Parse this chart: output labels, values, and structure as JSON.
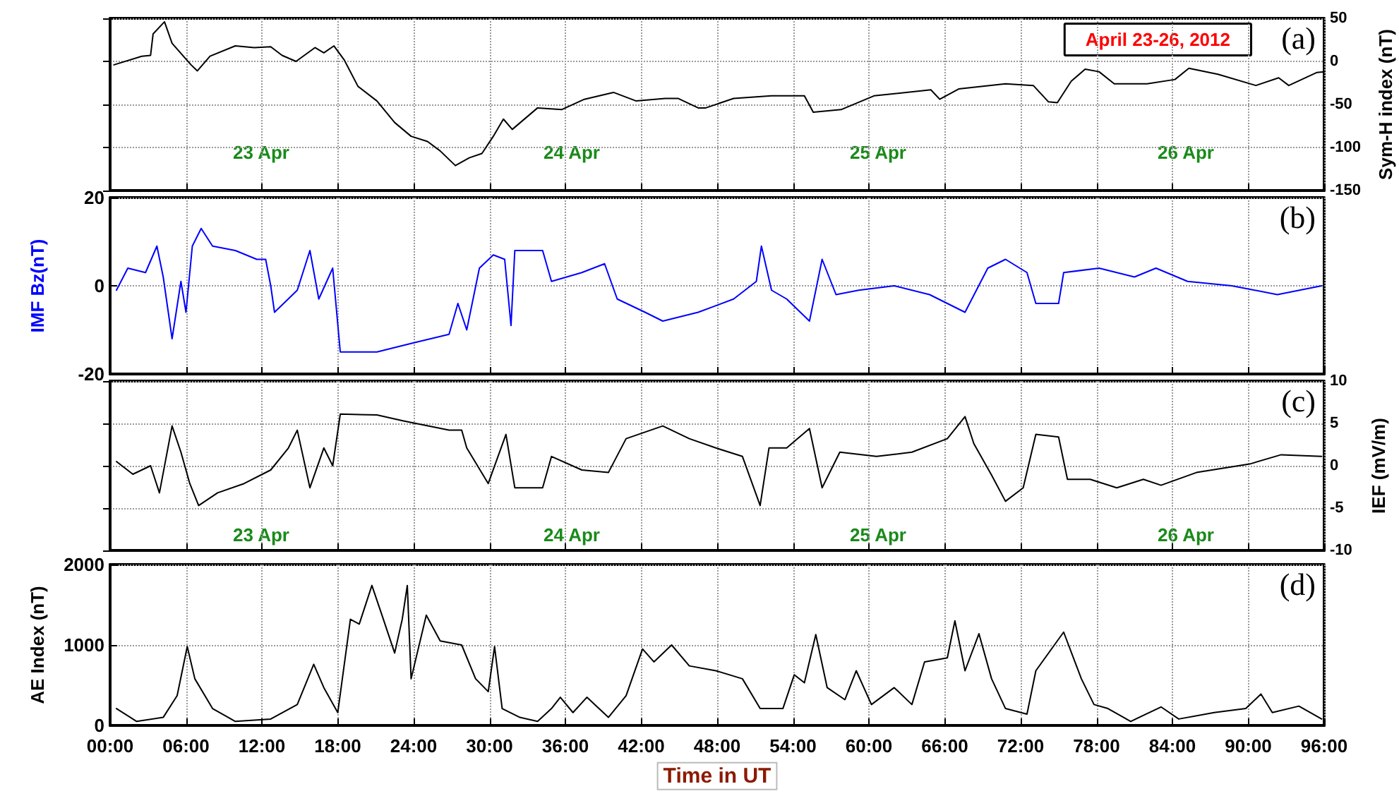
{
  "chart_data": [
    {
      "type": "line",
      "ylabel": "Sym-H index (nT)",
      "xlim": [
        0,
        96
      ],
      "ylim": [
        -150,
        50
      ],
      "yticks": [
        -150,
        -100,
        -50,
        0,
        50
      ],
      "tick_labels": "y",
      "grid": true,
      "marker": "none",
      "line_style": "solid",
      "xticks": [
        {
          "value": 0,
          "label": null
        },
        {
          "value": 6,
          "label": null
        },
        {
          "value": 12,
          "label": null
        },
        {
          "value": 18,
          "label": null
        },
        {
          "value": 24,
          "label": null
        },
        {
          "value": 30,
          "label": null
        },
        {
          "value": 36,
          "label": null
        },
        {
          "value": 42,
          "label": null
        },
        {
          "value": 48,
          "label": null
        },
        {
          "value": 54,
          "label": null
        },
        {
          "value": 60,
          "label": null
        },
        {
          "value": 66,
          "label": null
        },
        {
          "value": 72,
          "label": null
        },
        {
          "value": 78,
          "label": null
        },
        {
          "value": 84,
          "label": null
        },
        {
          "value": 90,
          "label": null
        },
        {
          "value": 96,
          "label": null
        }
      ],
      "x": [
        0.3,
        2.5,
        3.2,
        3.4,
        4.3,
        4.9,
        6.4,
        6.9,
        7.9,
        9.9,
        11.4,
        12.7,
        13.6,
        14.7,
        16.2,
        16.9,
        17.7,
        18.5,
        19.6,
        21.1,
        22.5,
        23.8,
        25.1,
        26.1,
        27.3,
        28.4,
        29.4,
        30.3,
        31.1,
        31.8,
        33.8,
        35.7,
        37.5,
        39.8,
        41.6,
        43.9,
        44.9,
        46.5,
        47.1,
        49.3,
        52.3,
        54.9,
        55.6,
        57.8,
        60.4,
        64.9,
        65.6,
        67.1,
        70.8,
        73.0,
        74.2,
        74.9,
        76.0,
        77.1,
        78.2,
        79.4,
        82.0,
        84.2,
        85.3,
        87.6,
        90.6,
        92.4,
        93.2,
        95.4,
        96
      ],
      "series": [
        {
          "color": "#000000",
          "values": [
            -4,
            6,
            7,
            32,
            46,
            21,
            -4,
            -11,
            6,
            18,
            16,
            17,
            7,
            0,
            16,
            10,
            18,
            2,
            -29,
            -46,
            -71,
            -87,
            -93,
            -104,
            -121,
            -112,
            -107,
            -87,
            -67,
            -79,
            -54,
            -56,
            -44,
            -36,
            -46,
            -43,
            -43,
            -54,
            -54,
            -43,
            -40,
            -40,
            -59,
            -56,
            -40,
            -33,
            -44,
            -32,
            -26,
            -28,
            -47,
            -48,
            -23,
            -9,
            -12,
            -26,
            -26,
            -21,
            -8,
            -15,
            -28,
            -19,
            -28,
            -13,
            -12
          ]
        }
      ],
      "annotations": [
        "April 23-26, 2012",
        "(a)",
        "23 Apr",
        "24 Apr",
        "25 Apr",
        "26 Apr"
      ]
    },
    {
      "type": "line",
      "ylabel": "IMF Bz(nT)",
      "xlim": [
        0,
        96
      ],
      "ylim": [
        -20,
        20
      ],
      "yticks": [
        -20,
        0,
        20
      ],
      "tick_labels": "y",
      "grid": true,
      "marker": "none",
      "line_style": "solid",
      "xticks": [
        {
          "value": 0,
          "label": null
        },
        {
          "value": 6,
          "label": null
        },
        {
          "value": 12,
          "label": null
        },
        {
          "value": 18,
          "label": null
        },
        {
          "value": 24,
          "label": null
        },
        {
          "value": 30,
          "label": null
        },
        {
          "value": 36,
          "label": null
        },
        {
          "value": 42,
          "label": null
        },
        {
          "value": 48,
          "label": null
        },
        {
          "value": 54,
          "label": null
        },
        {
          "value": 60,
          "label": null
        },
        {
          "value": 66,
          "label": null
        },
        {
          "value": 72,
          "label": null
        },
        {
          "value": 78,
          "label": null
        },
        {
          "value": 84,
          "label": null
        },
        {
          "value": 90,
          "label": null
        },
        {
          "value": 96,
          "label": null
        }
      ],
      "x": [
        0.5,
        1.4,
        2.8,
        3.7,
        4.2,
        4.9,
        5.6,
        6.0,
        6.5,
        7.2,
        8.1,
        9.9,
        11.6,
        12.3,
        12.7,
        13.0,
        14.8,
        15.8,
        16.5,
        17.6,
        18.2,
        21.1,
        23.9,
        26.8,
        27.5,
        28.2,
        29.2,
        30.3,
        31.2,
        31.7,
        32.0,
        34.2,
        34.9,
        37.3,
        39.1,
        40.1,
        42.3,
        43.7,
        46.5,
        49.3,
        51.1,
        51.5,
        52.3,
        53.5,
        55.3,
        56.3,
        57.4,
        59.2,
        62.0,
        64.8,
        67.6,
        69.4,
        70.8,
        72.5,
        73.2,
        75.0,
        75.4,
        78.2,
        81.0,
        82.7,
        85.2,
        88.7,
        92.3,
        95.8
      ],
      "series": [
        {
          "color": "#0000ff",
          "values": [
            -1,
            4,
            3,
            9,
            2,
            -12,
            1,
            -6,
            9,
            13,
            9,
            8,
            6,
            6,
            0,
            -6,
            -1,
            8,
            -3,
            4,
            -15,
            -15,
            -13,
            -11,
            -4,
            -10,
            4,
            7,
            6,
            -9,
            8,
            8,
            1,
            3,
            5,
            -3,
            -6,
            -8,
            -6,
            -3,
            1,
            9,
            -1,
            -3,
            -8,
            6,
            -2,
            -1,
            0,
            -2,
            -6,
            4,
            6,
            3,
            -4,
            -4,
            3,
            4,
            2,
            4,
            1,
            0,
            -2,
            0
          ]
        }
      ],
      "annotations": [
        "(b)"
      ]
    },
    {
      "type": "line",
      "ylabel": "IEF (mV/m)",
      "xlim": [
        0,
        96
      ],
      "ylim": [
        -10,
        10
      ],
      "yticks": [
        -10,
        -5,
        0,
        5,
        10
      ],
      "tick_labels": "y",
      "grid": true,
      "marker": "none",
      "line_style": "solid",
      "xticks": [
        {
          "value": 0,
          "label": null
        },
        {
          "value": 6,
          "label": null
        },
        {
          "value": 12,
          "label": null
        },
        {
          "value": 18,
          "label": null
        },
        {
          "value": 24,
          "label": null
        },
        {
          "value": 30,
          "label": null
        },
        {
          "value": 36,
          "label": null
        },
        {
          "value": 42,
          "label": null
        },
        {
          "value": 48,
          "label": null
        },
        {
          "value": 54,
          "label": null
        },
        {
          "value": 60,
          "label": null
        },
        {
          "value": 66,
          "label": null
        },
        {
          "value": 72,
          "label": null
        },
        {
          "value": 78,
          "label": null
        },
        {
          "value": 84,
          "label": null
        },
        {
          "value": 90,
          "label": null
        },
        {
          "value": 96,
          "label": null
        }
      ],
      "x": [
        0.5,
        1.8,
        3.2,
        3.9,
        4.9,
        5.6,
        6.3,
        7.0,
        8.5,
        10.6,
        12.7,
        14.1,
        14.8,
        15.8,
        16.9,
        17.6,
        18.2,
        21.1,
        23.2,
        26.8,
        27.8,
        28.2,
        29.9,
        31.3,
        32.0,
        34.2,
        34.9,
        37.3,
        39.4,
        40.8,
        43.7,
        45.8,
        47.9,
        50.0,
        51.4,
        52.1,
        53.5,
        55.3,
        56.3,
        57.7,
        60.6,
        63.4,
        66.2,
        67.6,
        68.3,
        69.7,
        70.8,
        72.2,
        73.2,
        75.0,
        75.7,
        77.5,
        79.6,
        81.7,
        83.1,
        85.9,
        90.1,
        92.6,
        95.8
      ],
      "series": [
        {
          "color": "#000000",
          "values": [
            0.5,
            -1,
            0,
            -3.2,
            4.7,
            1.6,
            -2.1,
            -4.7,
            -3.2,
            -2.1,
            -0.5,
            2.1,
            4.2,
            -2.6,
            2.1,
            0,
            6.1,
            6,
            5.3,
            4.2,
            4.2,
            2.1,
            -2.1,
            3.7,
            -2.6,
            -2.6,
            1.1,
            -0.5,
            -0.8,
            3.2,
            4.7,
            3.2,
            2.1,
            1.1,
            -4.7,
            2.1,
            2.1,
            4.4,
            -2.6,
            1.6,
            1.1,
            1.6,
            3.2,
            5.8,
            2.6,
            -1.1,
            -4.2,
            -2.6,
            3.7,
            3.4,
            -1.6,
            -1.6,
            -2.6,
            -1.6,
            -2.3,
            -0.8,
            0.2,
            1.3,
            1.1
          ]
        }
      ],
      "annotations": [
        "(c)",
        "23 Apr",
        "24 Apr",
        "25 Apr",
        "26 Apr"
      ]
    },
    {
      "type": "line",
      "ylabel": "AE Index (nT)",
      "xlabel": "Time in UT",
      "xlim": [
        0,
        96
      ],
      "ylim": [
        0,
        2000
      ],
      "yticks": [
        0,
        1000,
        2000
      ],
      "grid": true,
      "marker": "none",
      "line_style": "solid",
      "xticks": [
        {
          "value": 0,
          "label": "00:00"
        },
        {
          "value": 6,
          "label": "06:00"
        },
        {
          "value": 12,
          "label": "12:00"
        },
        {
          "value": 18,
          "label": "18:00"
        },
        {
          "value": 24,
          "label": "24:00"
        },
        {
          "value": 30,
          "label": "30:00"
        },
        {
          "value": 36,
          "label": "36:00"
        },
        {
          "value": 42,
          "label": "42:00"
        },
        {
          "value": 48,
          "label": "48:00"
        },
        {
          "value": 54,
          "label": "54:00"
        },
        {
          "value": 60,
          "label": "60:00"
        },
        {
          "value": 66,
          "label": "66:00"
        },
        {
          "value": 72,
          "label": "72:00"
        },
        {
          "value": 78,
          "label": "78:00"
        },
        {
          "value": 84,
          "label": "84:00"
        },
        {
          "value": 90,
          "label": "90:00"
        },
        {
          "value": 96,
          "label": "96:00"
        }
      ],
      "x": [
        0.5,
        2.1,
        4.2,
        5.3,
        6.1,
        6.7,
        8.1,
        9.9,
        12.7,
        14.8,
        16.1,
        16.9,
        18.0,
        19.0,
        19.7,
        20.7,
        21.5,
        22.5,
        23.1,
        23.5,
        23.8,
        25.0,
        26.1,
        27.8,
        28.9,
        29.9,
        30.4,
        31.0,
        32.4,
        33.8,
        34.9,
        35.6,
        36.6,
        37.7,
        39.4,
        40.8,
        42.1,
        43.0,
        44.4,
        45.8,
        47.9,
        50.0,
        51.4,
        53.2,
        54.1,
        54.9,
        55.8,
        56.7,
        58.1,
        59.0,
        60.2,
        62.0,
        63.4,
        64.4,
        66.2,
        66.8,
        67.6,
        68.7,
        69.7,
        70.8,
        72.5,
        73.2,
        75.4,
        76.8,
        77.8,
        78.9,
        80.7,
        83.1,
        84.5,
        87.3,
        89.8,
        91.0,
        91.9,
        94.0,
        95.8
      ],
      "series": [
        {
          "color": "#000000",
          "values": [
            210,
            50,
            100,
            370,
            980,
            580,
            210,
            50,
            80,
            260,
            760,
            470,
            160,
            1320,
            1260,
            1740,
            1370,
            900,
            1320,
            1740,
            580,
            1370,
            1050,
            1000,
            580,
            420,
            980,
            210,
            100,
            50,
            210,
            350,
            160,
            350,
            100,
            370,
            950,
            790,
            1000,
            740,
            680,
            580,
            210,
            210,
            630,
            530,
            1130,
            470,
            320,
            680,
            260,
            470,
            260,
            790,
            840,
            1300,
            680,
            1140,
            580,
            210,
            140,
            680,
            1160,
            580,
            260,
            210,
            50,
            230,
            80,
            160,
            210,
            390,
            160,
            240,
            80
          ]
        }
      ],
      "annotations": [
        "(d)"
      ]
    }
  ]
}
